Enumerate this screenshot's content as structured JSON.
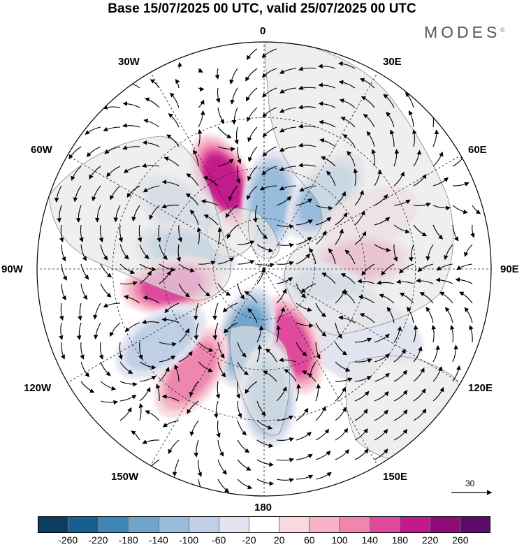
{
  "title": "Base 15/07/2025 00 UTC, valid 25/07/2025 00 UTC",
  "brand": "MODES",
  "brand_mark": "©",
  "longitude_labels": {
    "top": "0",
    "lon_30e": "30E",
    "lon_60e": "60E",
    "lon_90e": "90E",
    "lon_120e": "120E",
    "lon_150e": "150E",
    "bottom": "180",
    "lon_150w": "150W",
    "lon_120w": "120W",
    "lon_90w": "90W",
    "lon_60w": "60W",
    "lon_30w": "30W"
  },
  "vector_reference": "30",
  "legend": {
    "tick_labels": [
      "-260",
      "-220",
      "-180",
      "-140",
      "-100",
      "-60",
      "-20",
      "20",
      "60",
      "100",
      "140",
      "180",
      "220",
      "260"
    ],
    "colors": [
      "#0c3d60",
      "#175f8e",
      "#3f86b8",
      "#6fa4cc",
      "#98bcdb",
      "#bfcfe5",
      "#e2e4f0",
      "#ffffff",
      "#f8d9de",
      "#f5b3c5",
      "#ee86b0",
      "#e04a9c",
      "#c21a8c",
      "#8e0b78",
      "#5c0b6a"
    ]
  },
  "map_style": {
    "land_color": "#e6e6e6",
    "coast_color": "#8a8a8a",
    "positive_colors": [
      "#f8d9de",
      "#f5b3c5",
      "#ee86b0",
      "#e04a9c",
      "#c21a8c"
    ],
    "negative_colors": [
      "#e2e4f0",
      "#bfcfe5",
      "#98bcdb",
      "#6fa4cc",
      "#3f86b8"
    ]
  },
  "anomaly_centers": [
    {
      "lon": -25,
      "lat": 52,
      "value": 215
    },
    {
      "lon": 5,
      "lat": 63,
      "value": -140
    },
    {
      "lon": 40,
      "lat": 52,
      "value": -150
    },
    {
      "lon": -55,
      "lat": 50,
      "value": -110
    },
    {
      "lon": -78,
      "lat": 58,
      "value": -150
    },
    {
      "lon": -100,
      "lat": 53,
      "value": 200
    },
    {
      "lon": 65,
      "lat": 44,
      "value": 40
    },
    {
      "lon": 85,
      "lat": 52,
      "value": 120
    },
    {
      "lon": 110,
      "lat": 62,
      "value": -100
    },
    {
      "lon": 135,
      "lat": 50,
      "value": -50
    },
    {
      "lon": 160,
      "lat": 58,
      "value": 160
    },
    {
      "lon": -165,
      "lat": 62,
      "value": -180
    },
    {
      "lon": -145,
      "lat": 40,
      "value": 130
    },
    {
      "lon": -125,
      "lat": 40,
      "value": -110
    },
    {
      "lon": 178,
      "lat": 40,
      "value": -140
    },
    {
      "lon": 118,
      "lat": 40,
      "value": -60
    }
  ]
}
